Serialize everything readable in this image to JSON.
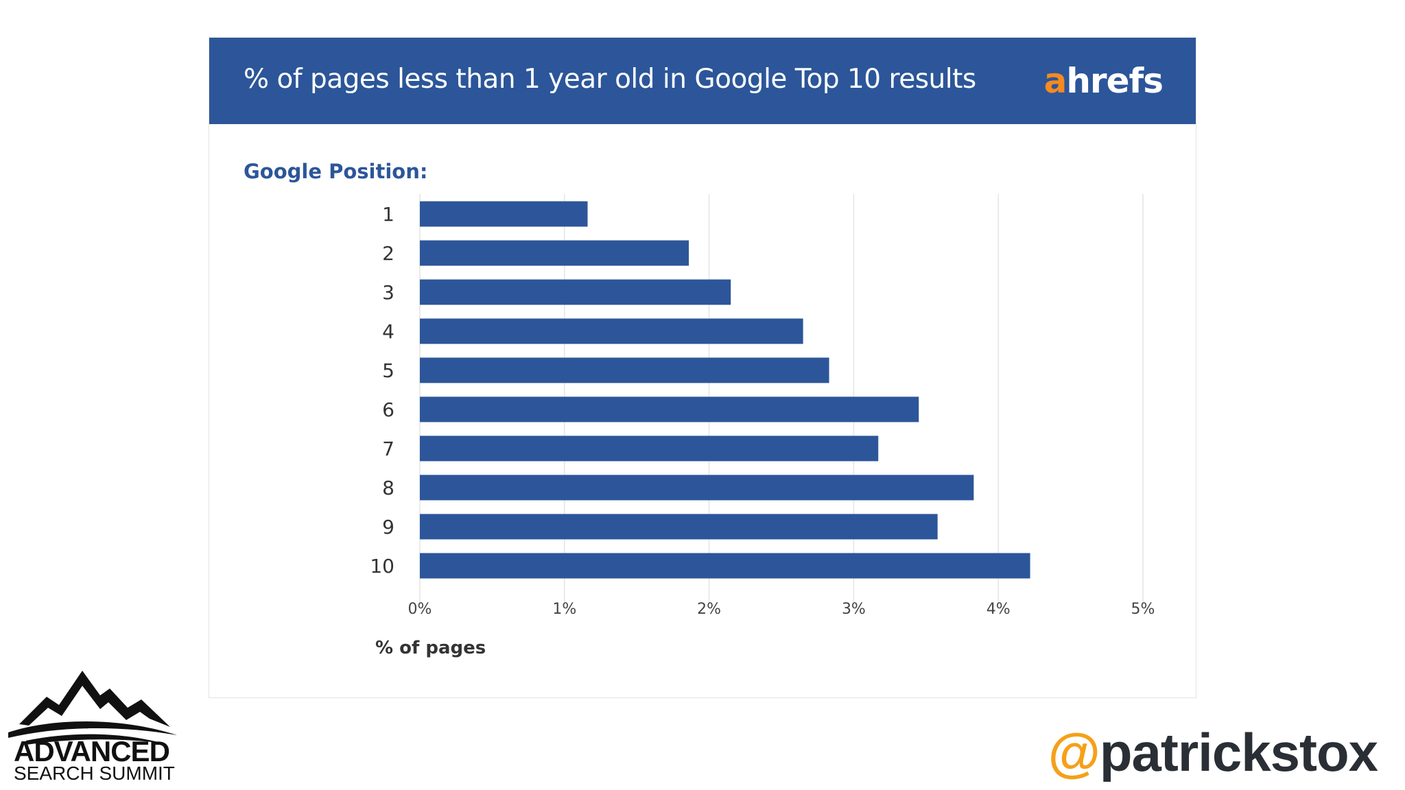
{
  "header": {
    "title": "% of pages less than 1 year old in Google Top 10 results",
    "brand_first": "a",
    "brand_rest": "hrefs"
  },
  "colors": {
    "header_bg": "#2c5699",
    "bar": "#2c5699",
    "brand_accent": "#f58a1f",
    "handle_at": "#f5a01a"
  },
  "chart_data": {
    "type": "bar",
    "orientation": "horizontal",
    "title": "% of pages less than 1 year old in Google Top 10 results",
    "ylabel": "Google Position:",
    "xlabel": "% of pages",
    "categories": [
      "1",
      "2",
      "3",
      "4",
      "5",
      "6",
      "7",
      "8",
      "9",
      "10"
    ],
    "values": [
      1.16,
      1.86,
      2.15,
      2.65,
      2.83,
      3.45,
      3.17,
      3.83,
      3.58,
      4.22
    ],
    "xlim": [
      0,
      5
    ],
    "x_ticks": [
      {
        "value": 0,
        "label": "0%"
      },
      {
        "value": 1,
        "label": "1%"
      },
      {
        "value": 2,
        "label": "2%"
      },
      {
        "value": 3,
        "label": "3%"
      },
      {
        "value": 4,
        "label": "4%"
      },
      {
        "value": 5,
        "label": "5%"
      }
    ],
    "grid": true,
    "legend": "none"
  },
  "footer": {
    "logo_line1": "ADVANCED",
    "logo_line2": "SEARCH SUMMIT",
    "handle_at": "@",
    "handle_name": "patrickstox"
  }
}
